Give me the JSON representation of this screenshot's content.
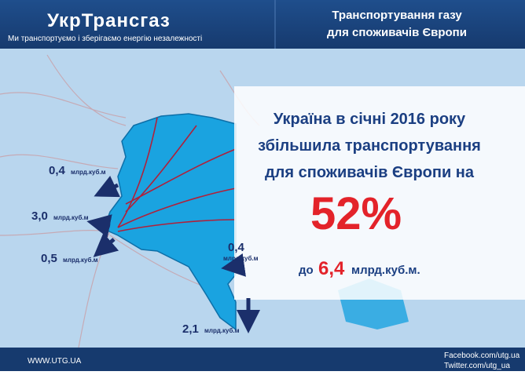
{
  "header": {
    "logo": "УкрТрансгаз",
    "tagline": "Ми транспортуємо і зберігаємо енергію незалежності",
    "title": [
      "Транспортування газу",
      "для споживачів Європи"
    ]
  },
  "panel": {
    "lines": [
      "Україна в січні 2016 року",
      "збільшила транспортування",
      "для споживачів Європи на"
    ],
    "percent": "52%",
    "prefix": "до",
    "amount": "6,4",
    "unit": "млрд.куб.м."
  },
  "flows": [
    {
      "value": "0,4",
      "unit": "млрд.куб.м"
    },
    {
      "value": "3,0",
      "unit": "млрд.куб.м"
    },
    {
      "value": "0,5",
      "unit": "млрд.куб.м"
    },
    {
      "value": "0,4",
      "unit": "млрд.куб.м"
    },
    {
      "value": "2,1",
      "unit": "млрд.куб.м"
    }
  ],
  "footer": {
    "website": "WWW.UTG.UA",
    "facebook": "Facebook.com/utg.ua",
    "twitter": "Twitter.com/utg_ua"
  }
}
